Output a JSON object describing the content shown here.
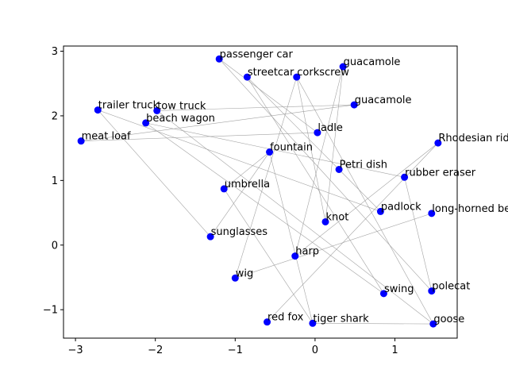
{
  "chart_data": {
    "type": "scatter",
    "title": "",
    "xlabel": "",
    "ylabel": "",
    "xlim": [
      -3.15,
      1.78
    ],
    "ylim": [
      -1.44,
      3.08
    ],
    "xticks": [
      -3,
      -2,
      -1,
      0,
      1
    ],
    "yticks": [
      -1,
      0,
      1,
      2,
      3
    ],
    "grid": false,
    "point_color": "#0000ff",
    "edge_color": "#999999",
    "points": [
      {
        "label": "passenger car",
        "x": -1.2,
        "y": 2.88
      },
      {
        "label": "guacamole",
        "x": 0.35,
        "y": 2.76
      },
      {
        "label": "streetcar",
        "x": -0.85,
        "y": 2.6
      },
      {
        "label": "corkscrew",
        "x": -0.23,
        "y": 2.6
      },
      {
        "label": "guacamole",
        "x": 0.49,
        "y": 2.17
      },
      {
        "label": "trailer truck",
        "x": -2.72,
        "y": 2.09
      },
      {
        "label": "tow truck",
        "x": -1.98,
        "y": 2.08
      },
      {
        "label": "beach wagon",
        "x": -2.12,
        "y": 1.89
      },
      {
        "label": "ladle",
        "x": 0.03,
        "y": 1.74
      },
      {
        "label": "meat loaf",
        "x": -2.93,
        "y": 1.61
      },
      {
        "label": "Rhodesian ridgeback",
        "x": 1.54,
        "y": 1.58
      },
      {
        "label": "fountain",
        "x": -0.57,
        "y": 1.44
      },
      {
        "label": "Petri dish",
        "x": 0.3,
        "y": 1.17
      },
      {
        "label": "rubber eraser",
        "x": 1.12,
        "y": 1.05
      },
      {
        "label": "umbrella",
        "x": -1.14,
        "y": 0.87
      },
      {
        "label": "padlock",
        "x": 0.82,
        "y": 0.52
      },
      {
        "label": "long-horned beetle",
        "x": 1.46,
        "y": 0.49
      },
      {
        "label": "knot",
        "x": 0.13,
        "y": 0.36
      },
      {
        "label": "sunglasses",
        "x": -1.31,
        "y": 0.13
      },
      {
        "label": "harp",
        "x": -0.25,
        "y": -0.17
      },
      {
        "label": "wig",
        "x": -1.0,
        "y": -0.51
      },
      {
        "label": "polecat",
        "x": 1.46,
        "y": -0.71
      },
      {
        "label": "swing",
        "x": 0.86,
        "y": -0.75
      },
      {
        "label": "red fox",
        "x": -0.6,
        "y": -1.19
      },
      {
        "label": "tiger shark",
        "x": -0.03,
        "y": -1.21
      },
      {
        "label": "goose",
        "x": 1.48,
        "y": -1.22
      }
    ],
    "edges": [
      [
        0,
        8
      ],
      [
        0,
        21
      ],
      [
        1,
        17
      ],
      [
        1,
        19
      ],
      [
        2,
        22
      ],
      [
        2,
        12
      ],
      [
        3,
        17
      ],
      [
        3,
        20
      ],
      [
        4,
        9
      ],
      [
        4,
        6
      ],
      [
        5,
        15
      ],
      [
        5,
        18
      ],
      [
        6,
        25
      ],
      [
        7,
        22
      ],
      [
        7,
        13
      ],
      [
        8,
        9
      ],
      [
        10,
        19
      ],
      [
        10,
        23
      ],
      [
        11,
        14
      ],
      [
        11,
        24
      ],
      [
        12,
        15
      ],
      [
        14,
        24
      ],
      [
        16,
        20
      ],
      [
        18,
        11
      ],
      [
        21,
        13
      ],
      [
        24,
        25
      ],
      [
        25,
        3
      ]
    ]
  }
}
